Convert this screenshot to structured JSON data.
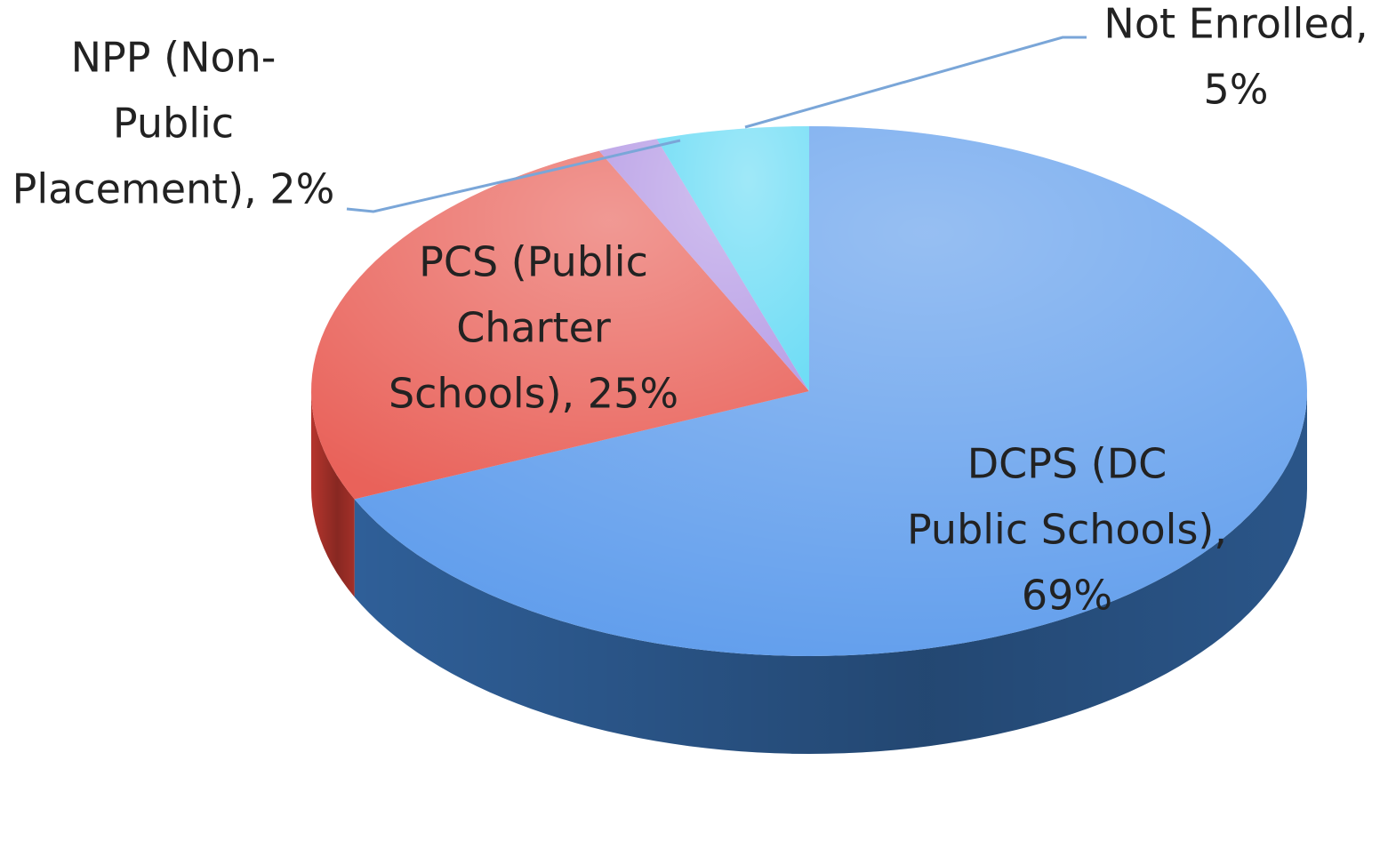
{
  "chart_data": {
    "type": "pie3d",
    "categories": [
      "DCPS (DC Public Schools)",
      "PCS (Public Charter Schools)",
      "NPP (Non-Public Placement)",
      "Not Enrolled"
    ],
    "values": [
      69,
      25,
      2,
      5
    ],
    "labels": [
      [
        "DCPS (DC",
        "Public Schools),",
        "69%"
      ],
      [
        "PCS (Public",
        "Charter",
        "Schools), 25%"
      ],
      [
        "NPP (Non-",
        "Public",
        "Placement), 2%"
      ],
      [
        "Not Enrolled,",
        "5%"
      ]
    ],
    "colors": [
      "#5e9cec",
      "#e9625a",
      "#b89ee6",
      "#6cdcf5"
    ],
    "side_colors": [
      "#2f5f98",
      "#b5352d",
      "#7d63a8",
      "#3aa0b8"
    ]
  }
}
